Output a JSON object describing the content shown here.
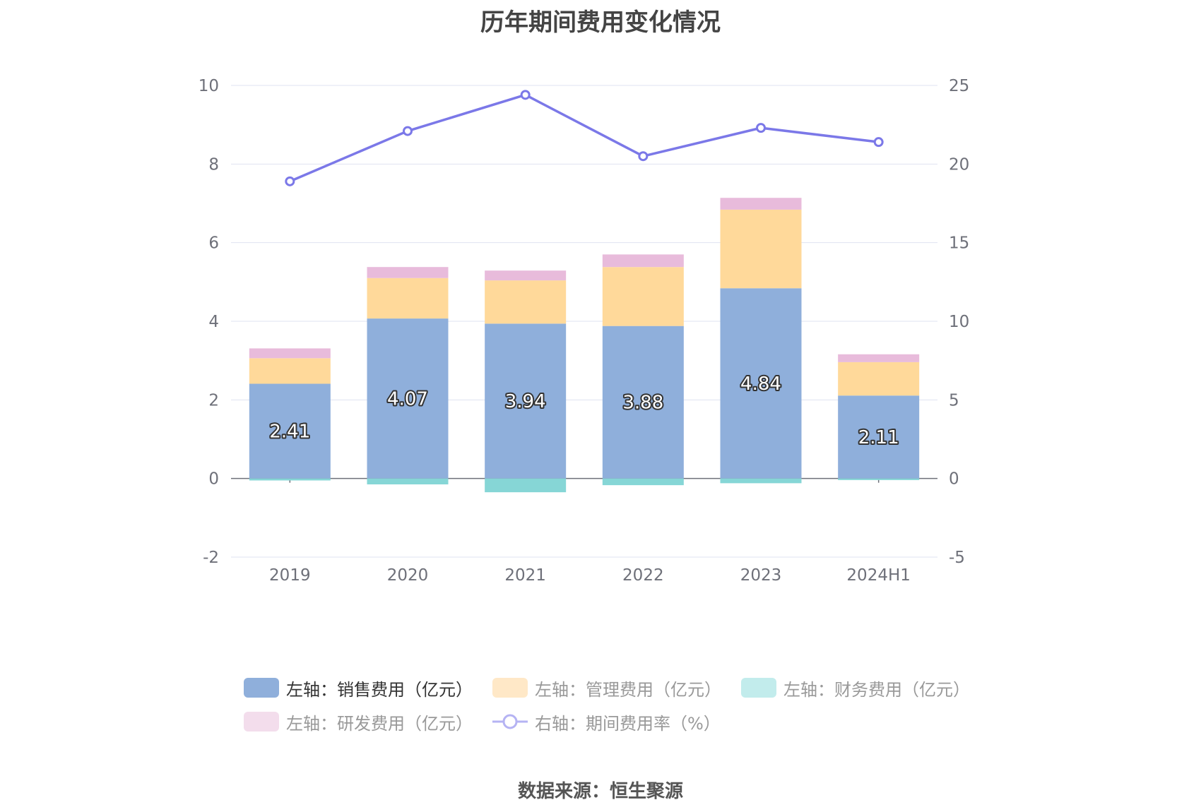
{
  "colors": {
    "sales": "#8fafdb",
    "admin": "#ffd99a",
    "finance": "#86d6d6",
    "rnd": "#e8bbdb",
    "rate": "#7b78e8",
    "grid": "#dfe3f0",
    "axis": "#6e7079"
  },
  "chart_data": {
    "type": "bar",
    "title": "历年期间费用变化情况",
    "categories": [
      "2019",
      "2020",
      "2021",
      "2022",
      "2023",
      "2024H1"
    ],
    "stacked": true,
    "y_left": {
      "ylim": [
        -2,
        10
      ],
      "ticks": [
        "-2",
        "0",
        "2",
        "4",
        "6",
        "8",
        "10"
      ]
    },
    "y_right": {
      "ylim": [
        -5,
        25
      ],
      "ticks": [
        "-5",
        "0",
        "5",
        "10",
        "15",
        "20",
        "25"
      ]
    },
    "grid": true,
    "series": [
      {
        "name": "左轴：销售费用（亿元）",
        "type": "bar",
        "axis": "left",
        "values": [
          2.41,
          4.07,
          3.94,
          3.88,
          4.84,
          2.11
        ],
        "labels": [
          "2.41",
          "4.07",
          "3.94",
          "3.88",
          "4.84",
          "2.11"
        ],
        "active": true
      },
      {
        "name": "左轴：管理费用（亿元）",
        "type": "bar",
        "axis": "left",
        "values": [
          0.65,
          1.03,
          1.1,
          1.5,
          2.0,
          0.85
        ],
        "active": false
      },
      {
        "name": "左轴：财务费用（亿元）",
        "type": "bar",
        "axis": "left",
        "values": [
          -0.05,
          -0.15,
          -0.35,
          -0.17,
          -0.12,
          -0.04
        ],
        "active": false
      },
      {
        "name": "左轴：研发费用（亿元）",
        "type": "bar",
        "axis": "left",
        "values": [
          0.25,
          0.28,
          0.25,
          0.32,
          0.3,
          0.2
        ],
        "active": false
      },
      {
        "name": "右轴：期间费用率（%）",
        "type": "line",
        "axis": "right",
        "values": [
          18.9,
          22.1,
          24.4,
          20.5,
          22.3,
          21.4
        ],
        "active": false
      }
    ],
    "legend_position": "bottom"
  },
  "source": "数据来源：恒生聚源"
}
